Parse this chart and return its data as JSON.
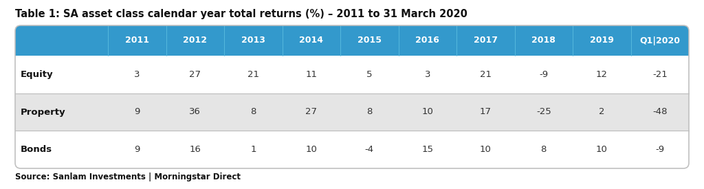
{
  "title": "Table 1: SA asset class calendar year total returns (%) – 2011 to 31 March 2020",
  "source": "Source: Sanlam Investments | Morningstar Direct",
  "columns": [
    "",
    "2011",
    "2012",
    "2013",
    "2014",
    "2015",
    "2016",
    "2017",
    "2018",
    "2019",
    "Q1|2020"
  ],
  "rows": [
    {
      "label": "Equity",
      "values": [
        "3",
        "27",
        "21",
        "11",
        "5",
        "3",
        "21",
        "-9",
        "12",
        "-21"
      ]
    },
    {
      "label": "Property",
      "values": [
        "9",
        "36",
        "8",
        "27",
        "8",
        "10",
        "17",
        "-25",
        "2",
        "-48"
      ]
    },
    {
      "label": "Bonds",
      "values": [
        "9",
        "16",
        "1",
        "10",
        "-4",
        "15",
        "10",
        "8",
        "10",
        "-9"
      ]
    }
  ],
  "header_bg": "#3399CC",
  "header_text": "#ffffff",
  "row_bg_white": "#ffffff",
  "row_bg_grey": "#e8e8e8",
  "row_colors": [
    "#ffffff",
    "#e5e5e5",
    "#ffffff"
  ],
  "label_text_color": "#111111",
  "value_text_color": "#333333",
  "title_color": "#111111",
  "source_color": "#111111",
  "fig_bg": "#ffffff",
  "table_border_color": "#c0c0c0",
  "divider_color": "#bbbbbb",
  "figsize": [
    10.24,
    2.75
  ],
  "dpi": 100
}
